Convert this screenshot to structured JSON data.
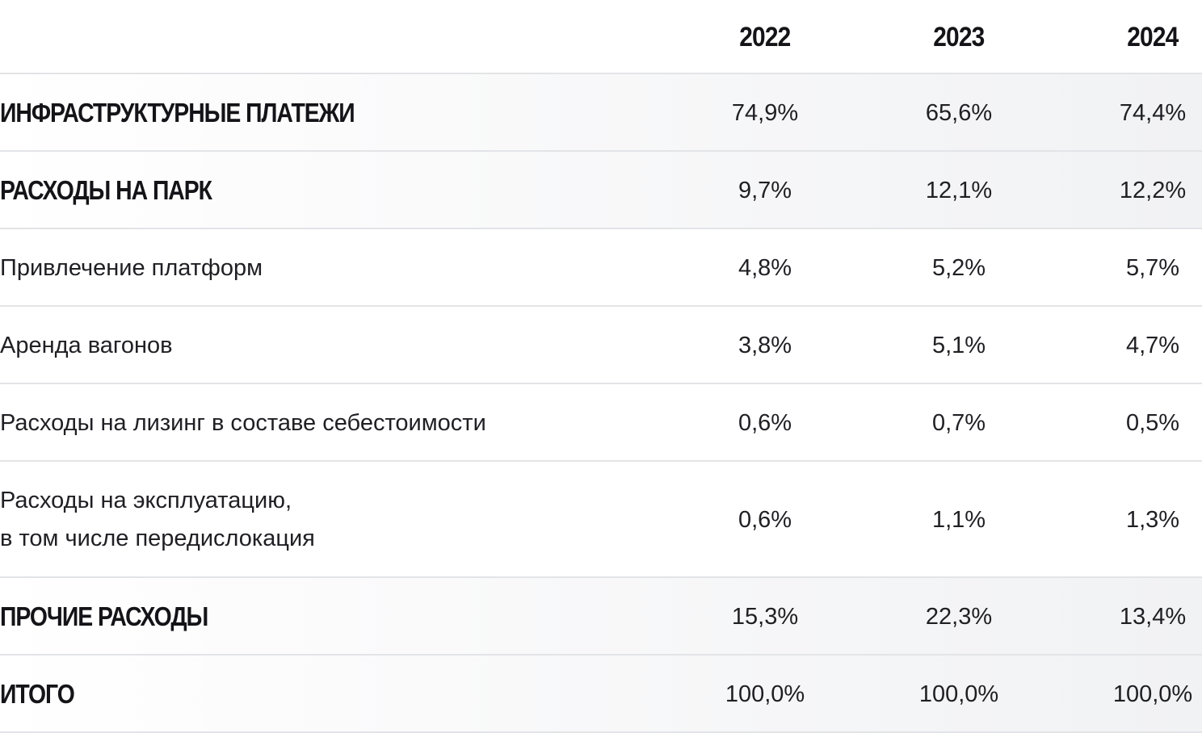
{
  "columns": [
    "2022",
    "2023",
    "2024"
  ],
  "rows": [
    {
      "label": "ИНФРАСТРУКТУРНЫЕ ПЛАТЕЖИ",
      "values": [
        "74,9%",
        "65,6%",
        "74,4%"
      ]
    },
    {
      "label": "РАСХОДЫ НА ПАРК",
      "values": [
        "9,7%",
        "12,1%",
        "12,2%"
      ]
    },
    {
      "label": "Привлечение платформ",
      "values": [
        "4,8%",
        "5,2%",
        "5,7%"
      ]
    },
    {
      "label": "Аренда вагонов",
      "values": [
        "3,8%",
        "5,1%",
        "4,7%"
      ]
    },
    {
      "label": "Расходы на лизинг в составе себестоимости",
      "values": [
        "0,6%",
        "0,7%",
        "0,5%"
      ]
    },
    {
      "label_lines": [
        "Расходы на эксплуатацию,",
        "в том числе передислокация"
      ],
      "values": [
        "0,6%",
        "1,1%",
        "1,3%"
      ]
    },
    {
      "label": "ПРОЧИЕ РАСХОДЫ",
      "values": [
        "15,3%",
        "22,3%",
        "13,4%"
      ]
    },
    {
      "label": "ИТОГО",
      "values": [
        "100,0%",
        "100,0%",
        "100,0%"
      ]
    }
  ],
  "chart_data": {
    "type": "table",
    "columns": [
      "2022",
      "2023",
      "2024"
    ],
    "rows": [
      {
        "label": "ИНФРАСТРУКТУРНЫЕ ПЛАТЕЖИ",
        "values": [
          74.9,
          65.6,
          74.4
        ]
      },
      {
        "label": "РАСХОДЫ НА ПАРК",
        "values": [
          9.7,
          12.1,
          12.2
        ]
      },
      {
        "label": "Привлечение платформ",
        "values": [
          4.8,
          5.2,
          5.7
        ]
      },
      {
        "label": "Аренда вагонов",
        "values": [
          3.8,
          5.1,
          4.7
        ]
      },
      {
        "label": "Расходы на лизинг в составе себестоимости",
        "values": [
          0.6,
          0.7,
          0.5
        ]
      },
      {
        "label": "Расходы на эксплуатацию, в том числе передислокация",
        "values": [
          0.6,
          1.1,
          1.3
        ]
      },
      {
        "label": "ПРОЧИЕ РАСХОДЫ",
        "values": [
          15.3,
          22.3,
          13.4
        ]
      },
      {
        "label": "ИТОГО",
        "values": [
          100.0,
          100.0,
          100.0
        ]
      }
    ],
    "unit": "%"
  }
}
